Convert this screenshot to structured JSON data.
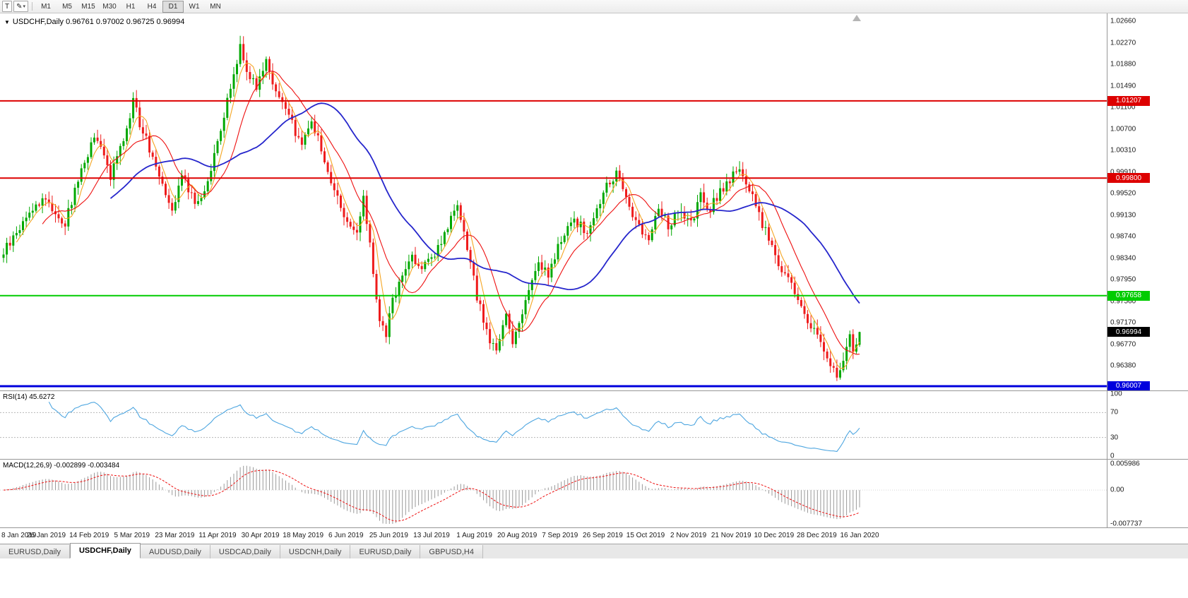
{
  "toolbar": {
    "text_tool_label": "T",
    "draw_tool_icon": "✎",
    "dropdown_arrow": "▾",
    "timeframes": [
      "M1",
      "M5",
      "M15",
      "M30",
      "H1",
      "H4",
      "D1",
      "W1",
      "MN"
    ],
    "active_timeframe": "D1"
  },
  "chart_header": {
    "collapse_icon": "▼",
    "title": "USDCHF,Daily 0.96761 0.97002 0.96725 0.96994"
  },
  "price_axis": {
    "labels": [
      "1.02660",
      "1.02270",
      "1.01880",
      "1.01490",
      "1.01100",
      "1.00700",
      "1.00310",
      "0.99910",
      "0.99520",
      "0.99130",
      "0.98740",
      "0.98340",
      "0.97950",
      "0.97560",
      "0.97170",
      "0.96770",
      "0.96380"
    ]
  },
  "date_axis": {
    "labels": [
      "8 Jan 2019",
      "26 Jan 2019",
      "14 Feb 2019",
      "5 Mar 2019",
      "23 Mar 2019",
      "11 Apr 2019",
      "30 Apr 2019",
      "18 May 2019",
      "6 Jun 2019",
      "25 Jun 2019",
      "13 Jul 2019",
      "1 Aug 2019",
      "20 Aug 2019",
      "7 Sep 2019",
      "26 Sep 2019",
      "15 Oct 2019",
      "2 Nov 2019",
      "21 Nov 2019",
      "10 Dec 2019",
      "28 Dec 2019",
      "16 Jan 2020"
    ]
  },
  "rsi_panel": {
    "label": "RSI(14) 45.6272",
    "axis_labels": [
      "100",
      "70",
      "30",
      "0"
    ]
  },
  "macd_panel": {
    "label": "MACD(12,26,9) -0.002899 -0.003484",
    "axis_labels": [
      "0.005986",
      "0.00",
      "-0.007737"
    ]
  },
  "tabs": [
    "EURUSD,Daily",
    "USDCHF,Daily",
    "AUDUSD,Daily",
    "USDCAD,Daily",
    "USDCNH,Daily",
    "EURUSD,Daily",
    "GBPUSD,H4"
  ],
  "active_tab_index": 1,
  "chart_data": {
    "type": "candlestick",
    "symbol": "USDCHF",
    "period": "Daily",
    "days": 265,
    "price_domain": [
      0.9595,
      1.0285
    ],
    "current_bar": {
      "open": 0.96761,
      "high": 0.97002,
      "low": 0.96725,
      "close": 0.96994
    },
    "up_color": "#00a800",
    "down_color": "#ee1c1c",
    "close_waypoints": [
      [
        0,
        0.9845
      ],
      [
        3,
        0.987
      ],
      [
        6,
        0.99
      ],
      [
        9,
        0.9925
      ],
      [
        13,
        0.9945
      ],
      [
        16,
        0.9915
      ],
      [
        19,
        0.9895
      ],
      [
        22,
        0.996
      ],
      [
        25,
        1.001
      ],
      [
        28,
        1.0055
      ],
      [
        31,
        1.002
      ],
      [
        33,
        0.9985
      ],
      [
        36,
        1.003
      ],
      [
        39,
        1.0095
      ],
      [
        40,
        1.013
      ],
      [
        42,
        1.008
      ],
      [
        45,
        1.0035
      ],
      [
        48,
        0.999
      ],
      [
        52,
        0.9925
      ],
      [
        55,
        0.9985
      ],
      [
        58,
        0.995
      ],
      [
        60,
        0.993
      ],
      [
        62,
        0.996
      ],
      [
        66,
        1.004
      ],
      [
        70,
        1.0145
      ],
      [
        73,
        1.0222
      ],
      [
        75,
        1.0175
      ],
      [
        78,
        1.015
      ],
      [
        81,
        1.0195
      ],
      [
        84,
        1.014
      ],
      [
        88,
        1.009
      ],
      [
        92,
        1.004
      ],
      [
        95,
        1.009
      ],
      [
        100,
        0.999
      ],
      [
        104,
        0.993
      ],
      [
        107,
        0.989
      ],
      [
        109,
        0.9875
      ],
      [
        111,
        0.994
      ],
      [
        113,
        0.986
      ],
      [
        116,
        0.9715
      ],
      [
        118,
        0.9695
      ],
      [
        120,
        0.976
      ],
      [
        123,
        0.98
      ],
      [
        126,
        0.984
      ],
      [
        129,
        0.9815
      ],
      [
        132,
        0.983
      ],
      [
        136,
        0.988
      ],
      [
        140,
        0.9925
      ],
      [
        143,
        0.985
      ],
      [
        146,
        0.9765
      ],
      [
        149,
        0.97
      ],
      [
        152,
        0.966
      ],
      [
        155,
        0.9735
      ],
      [
        157,
        0.968
      ],
      [
        159,
        0.972
      ],
      [
        162,
        0.9775
      ],
      [
        165,
        0.983
      ],
      [
        168,
        0.98
      ],
      [
        172,
        0.987
      ],
      [
        176,
        0.9905
      ],
      [
        180,
        0.988
      ],
      [
        184,
        0.9935
      ],
      [
        186,
        0.9965
      ],
      [
        189,
        0.999
      ],
      [
        192,
        0.9945
      ],
      [
        195,
        0.99
      ],
      [
        199,
        0.987
      ],
      [
        202,
        0.993
      ],
      [
        205,
        0.989
      ],
      [
        208,
        0.9915
      ],
      [
        212,
        0.9895
      ],
      [
        215,
        0.9945
      ],
      [
        218,
        0.9925
      ],
      [
        221,
        0.9955
      ],
      [
        225,
        0.9985
      ],
      [
        227,
        1.0
      ],
      [
        230,
        0.996
      ],
      [
        233,
        0.991
      ],
      [
        236,
        0.987
      ],
      [
        238,
        0.984
      ],
      [
        241,
        0.9805
      ],
      [
        244,
        0.977
      ],
      [
        247,
        0.973
      ],
      [
        251,
        0.9695
      ],
      [
        254,
        0.965
      ],
      [
        257,
        0.9618
      ],
      [
        259,
        0.964
      ],
      [
        261,
        0.97
      ],
      [
        262,
        0.9662
      ],
      [
        264,
        0.9699
      ]
    ],
    "moving_averages": [
      {
        "name": "fast",
        "period": 5,
        "color": "#f5a623"
      },
      {
        "name": "mid",
        "period": 13,
        "color": "#ee1010"
      },
      {
        "name": "slow",
        "period": 34,
        "color": "#2626cc"
      }
    ],
    "hlines": [
      {
        "price": 1.01207,
        "label": "1.01207",
        "color": "#dd0000",
        "width": 2
      },
      {
        "price": 0.998,
        "label": "0.99800",
        "color": "#dd0000",
        "width": 2
      },
      {
        "price": 0.97658,
        "label": "0.97658",
        "color": "#00cc00",
        "width": 2
      },
      {
        "price": 0.96007,
        "label": "0.96007",
        "color": "#0000dd",
        "width": 3
      }
    ],
    "current_price": {
      "price": 0.96994,
      "label": "0.96994",
      "bg": "#000000"
    },
    "rsi": {
      "period": 14,
      "value": 45.6272,
      "color": "#4ea6e0",
      "levels": [
        70,
        30
      ]
    },
    "macd": {
      "fast": 12,
      "slow": 26,
      "signal": 9,
      "value": -0.002899,
      "signal_value": -0.003484,
      "range": [
        -0.007737,
        0.005986
      ],
      "bar_color": "#9a9a9a",
      "signal_color": "#ee1010"
    }
  }
}
